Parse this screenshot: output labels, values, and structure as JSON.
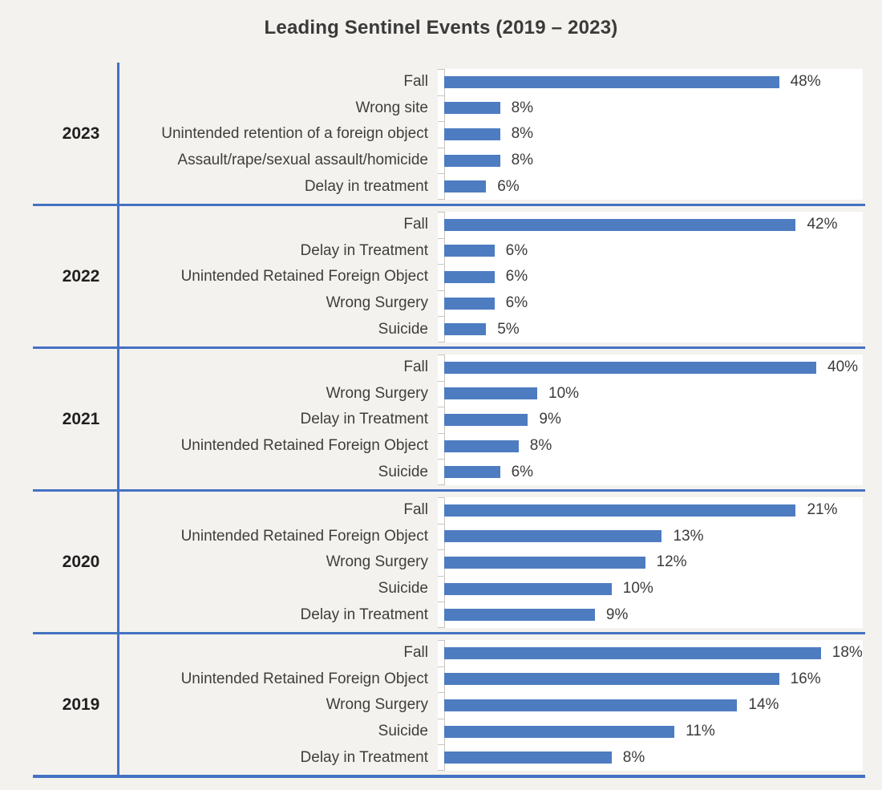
{
  "chart_data": {
    "type": "bar",
    "orientation": "horizontal",
    "title": "Leading Sentinel Events (2019 – 2023)",
    "value_suffix": "%",
    "legend": "none",
    "grid": false,
    "layout_hint": "five stacked panels, one per year, each with its own auto-scaled x-axis; category labels right-aligned; data labels at bar ends",
    "colors": {
      "bar": "#4d7cc1",
      "divider_line": "#4472c4",
      "panel_background": "#ffffff",
      "page_background": "#f4f2ee",
      "axis_tick": "#c9c6c1"
    },
    "groups": [
      {
        "year": "2023",
        "axis_max": 60,
        "items": [
          {
            "label": "Fall",
            "value": 48
          },
          {
            "label": "Wrong site",
            "value": 8
          },
          {
            "label": "Unintended retention of a foreign object",
            "value": 8
          },
          {
            "label": "Assault/rape/sexual assault/homicide",
            "value": 8
          },
          {
            "label": "Delay in treatment",
            "value": 6
          }
        ]
      },
      {
        "year": "2022",
        "axis_max": 50,
        "items": [
          {
            "label": "Fall",
            "value": 42
          },
          {
            "label": "Delay in Treatment",
            "value": 6
          },
          {
            "label": "Unintended Retained Foreign Object",
            "value": 6
          },
          {
            "label": "Wrong Surgery",
            "value": 6
          },
          {
            "label": "Suicide",
            "value": 5
          }
        ]
      },
      {
        "year": "2021",
        "axis_max": 45,
        "items": [
          {
            "label": "Fall",
            "value": 40
          },
          {
            "label": "Wrong Surgery",
            "value": 10
          },
          {
            "label": "Delay in Treatment",
            "value": 9
          },
          {
            "label": "Unintended Retained Foreign Object",
            "value": 8
          },
          {
            "label": "Suicide",
            "value": 6
          }
        ]
      },
      {
        "year": "2020",
        "axis_max": 25,
        "items": [
          {
            "label": "Fall",
            "value": 21
          },
          {
            "label": "Unintended Retained Foreign Object",
            "value": 13
          },
          {
            "label": "Wrong Surgery",
            "value": 12
          },
          {
            "label": "Suicide",
            "value": 10
          },
          {
            "label": "Delay in Treatment",
            "value": 9
          }
        ]
      },
      {
        "year": "2019",
        "axis_max": 20,
        "items": [
          {
            "label": "Fall",
            "value": 18
          },
          {
            "label": "Unintended Retained Foreign Object",
            "value": 16
          },
          {
            "label": "Wrong Surgery",
            "value": 14
          },
          {
            "label": "Suicide",
            "value": 11
          },
          {
            "label": "Delay in Treatment",
            "value": 8
          }
        ]
      }
    ]
  }
}
